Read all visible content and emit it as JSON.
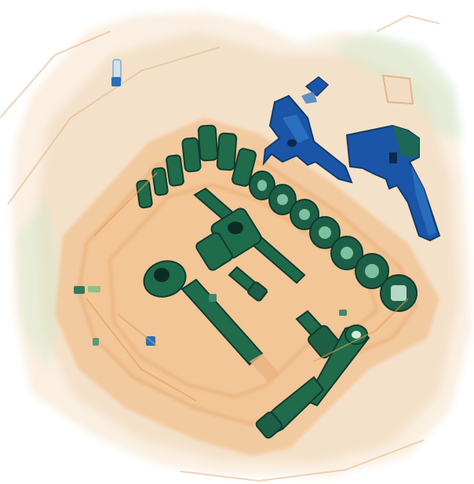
{
  "image": {
    "description_tag": "xray-baggage-scan",
    "palette": {
      "background": "#ffffff",
      "organic_light": "#f2c79a",
      "organic_mid": "#e9a462",
      "organic_dark": "#d98a45",
      "inorganic_light": "#cfe2bf",
      "inorganic_mid": "#8fbf82",
      "metal_green": "#1f6b4a",
      "metal_blue": "#1a55a8",
      "metal_dark": "#123a66"
    }
  }
}
